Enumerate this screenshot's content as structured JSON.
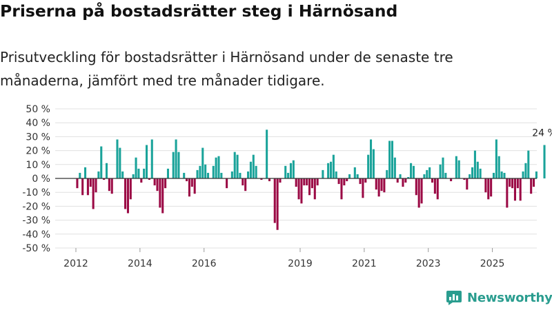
{
  "title": "Priserna på bostadsrätter steg i Härnösand",
  "subtitle": "Prisutveckling för bostadsrätter i Härnösand under de senaste tre månaderna, jämfört med tre månader tidigare.",
  "brand": {
    "name": "Newsworthy"
  },
  "colors": {
    "positive": "#1aa39a",
    "negative": "#9b0a45",
    "grid": "#e0e0e0",
    "zero": "#333333"
  },
  "chart_data": {
    "type": "bar",
    "ylim": [
      -50,
      50
    ],
    "y_ticks": [
      50,
      40,
      30,
      20,
      10,
      0,
      -10,
      -20,
      -30,
      -40,
      -50
    ],
    "y_tick_labels": [
      "50 %",
      "40 %",
      "30 %",
      "20 %",
      "10 %",
      "0 %",
      "-10 %",
      "-20 %",
      "-30 %",
      "-40 %",
      "-50 %"
    ],
    "x_start": 2012.0,
    "x_end": 2026.0,
    "x_ticks": [
      {
        "label": "2012",
        "year": 2012.0
      },
      {
        "label": "2014",
        "year": 2014.0
      },
      {
        "label": "2016",
        "year": 2016.0
      },
      {
        "label": "2019",
        "year": 2019.0
      },
      {
        "label": "2021",
        "year": 2021.0
      },
      {
        "label": "2023",
        "year": 2023.0
      },
      {
        "label": "2025",
        "year": 2025.0
      }
    ],
    "start_month": "2012-01",
    "unit": "%",
    "values": [
      -7,
      4,
      -12,
      8,
      -12,
      -6,
      -22,
      -10,
      5,
      23,
      -1,
      11,
      -9,
      -11,
      0,
      28,
      22,
      5,
      -22,
      -25,
      -15,
      3,
      15,
      7,
      -3,
      7,
      24,
      -1,
      28,
      -5,
      -9,
      -21,
      -25,
      -7,
      7,
      0,
      19,
      28,
      19,
      0,
      4,
      -2,
      -13,
      -6,
      -11,
      6,
      9,
      22,
      10,
      4,
      0,
      9,
      15,
      16,
      4,
      0,
      -7,
      0,
      5,
      19,
      17,
      4,
      -5,
      -9,
      5,
      12,
      17,
      9,
      0,
      -1,
      0,
      35,
      -2,
      0,
      -32,
      -37,
      -3,
      0,
      9,
      4,
      11,
      13,
      -6,
      -15,
      -18,
      -5,
      -5,
      -12,
      -7,
      -15,
      -5,
      0,
      6,
      0,
      11,
      12,
      17,
      5,
      -4,
      -15,
      -5,
      -2,
      3,
      0,
      8,
      3,
      -4,
      -14,
      -3,
      17,
      28,
      21,
      -8,
      -13,
      -9,
      -10,
      6,
      27,
      27,
      15,
      -3,
      3,
      -6,
      -3,
      1,
      11,
      9,
      -12,
      -21,
      -18,
      3,
      6,
      8,
      -3,
      -11,
      -15,
      10,
      15,
      4,
      0,
      -2,
      0,
      16,
      13,
      0,
      -1,
      -8,
      3,
      8,
      20,
      12,
      7,
      0,
      -10,
      -15,
      -13,
      4,
      28,
      16,
      5,
      4,
      -21,
      -6,
      -7,
      -16,
      -7,
      -16,
      5,
      11,
      20,
      -11,
      -6,
      5,
      0,
      0,
      24
    ],
    "annotation": {
      "label": "24 %",
      "value": 24
    }
  }
}
